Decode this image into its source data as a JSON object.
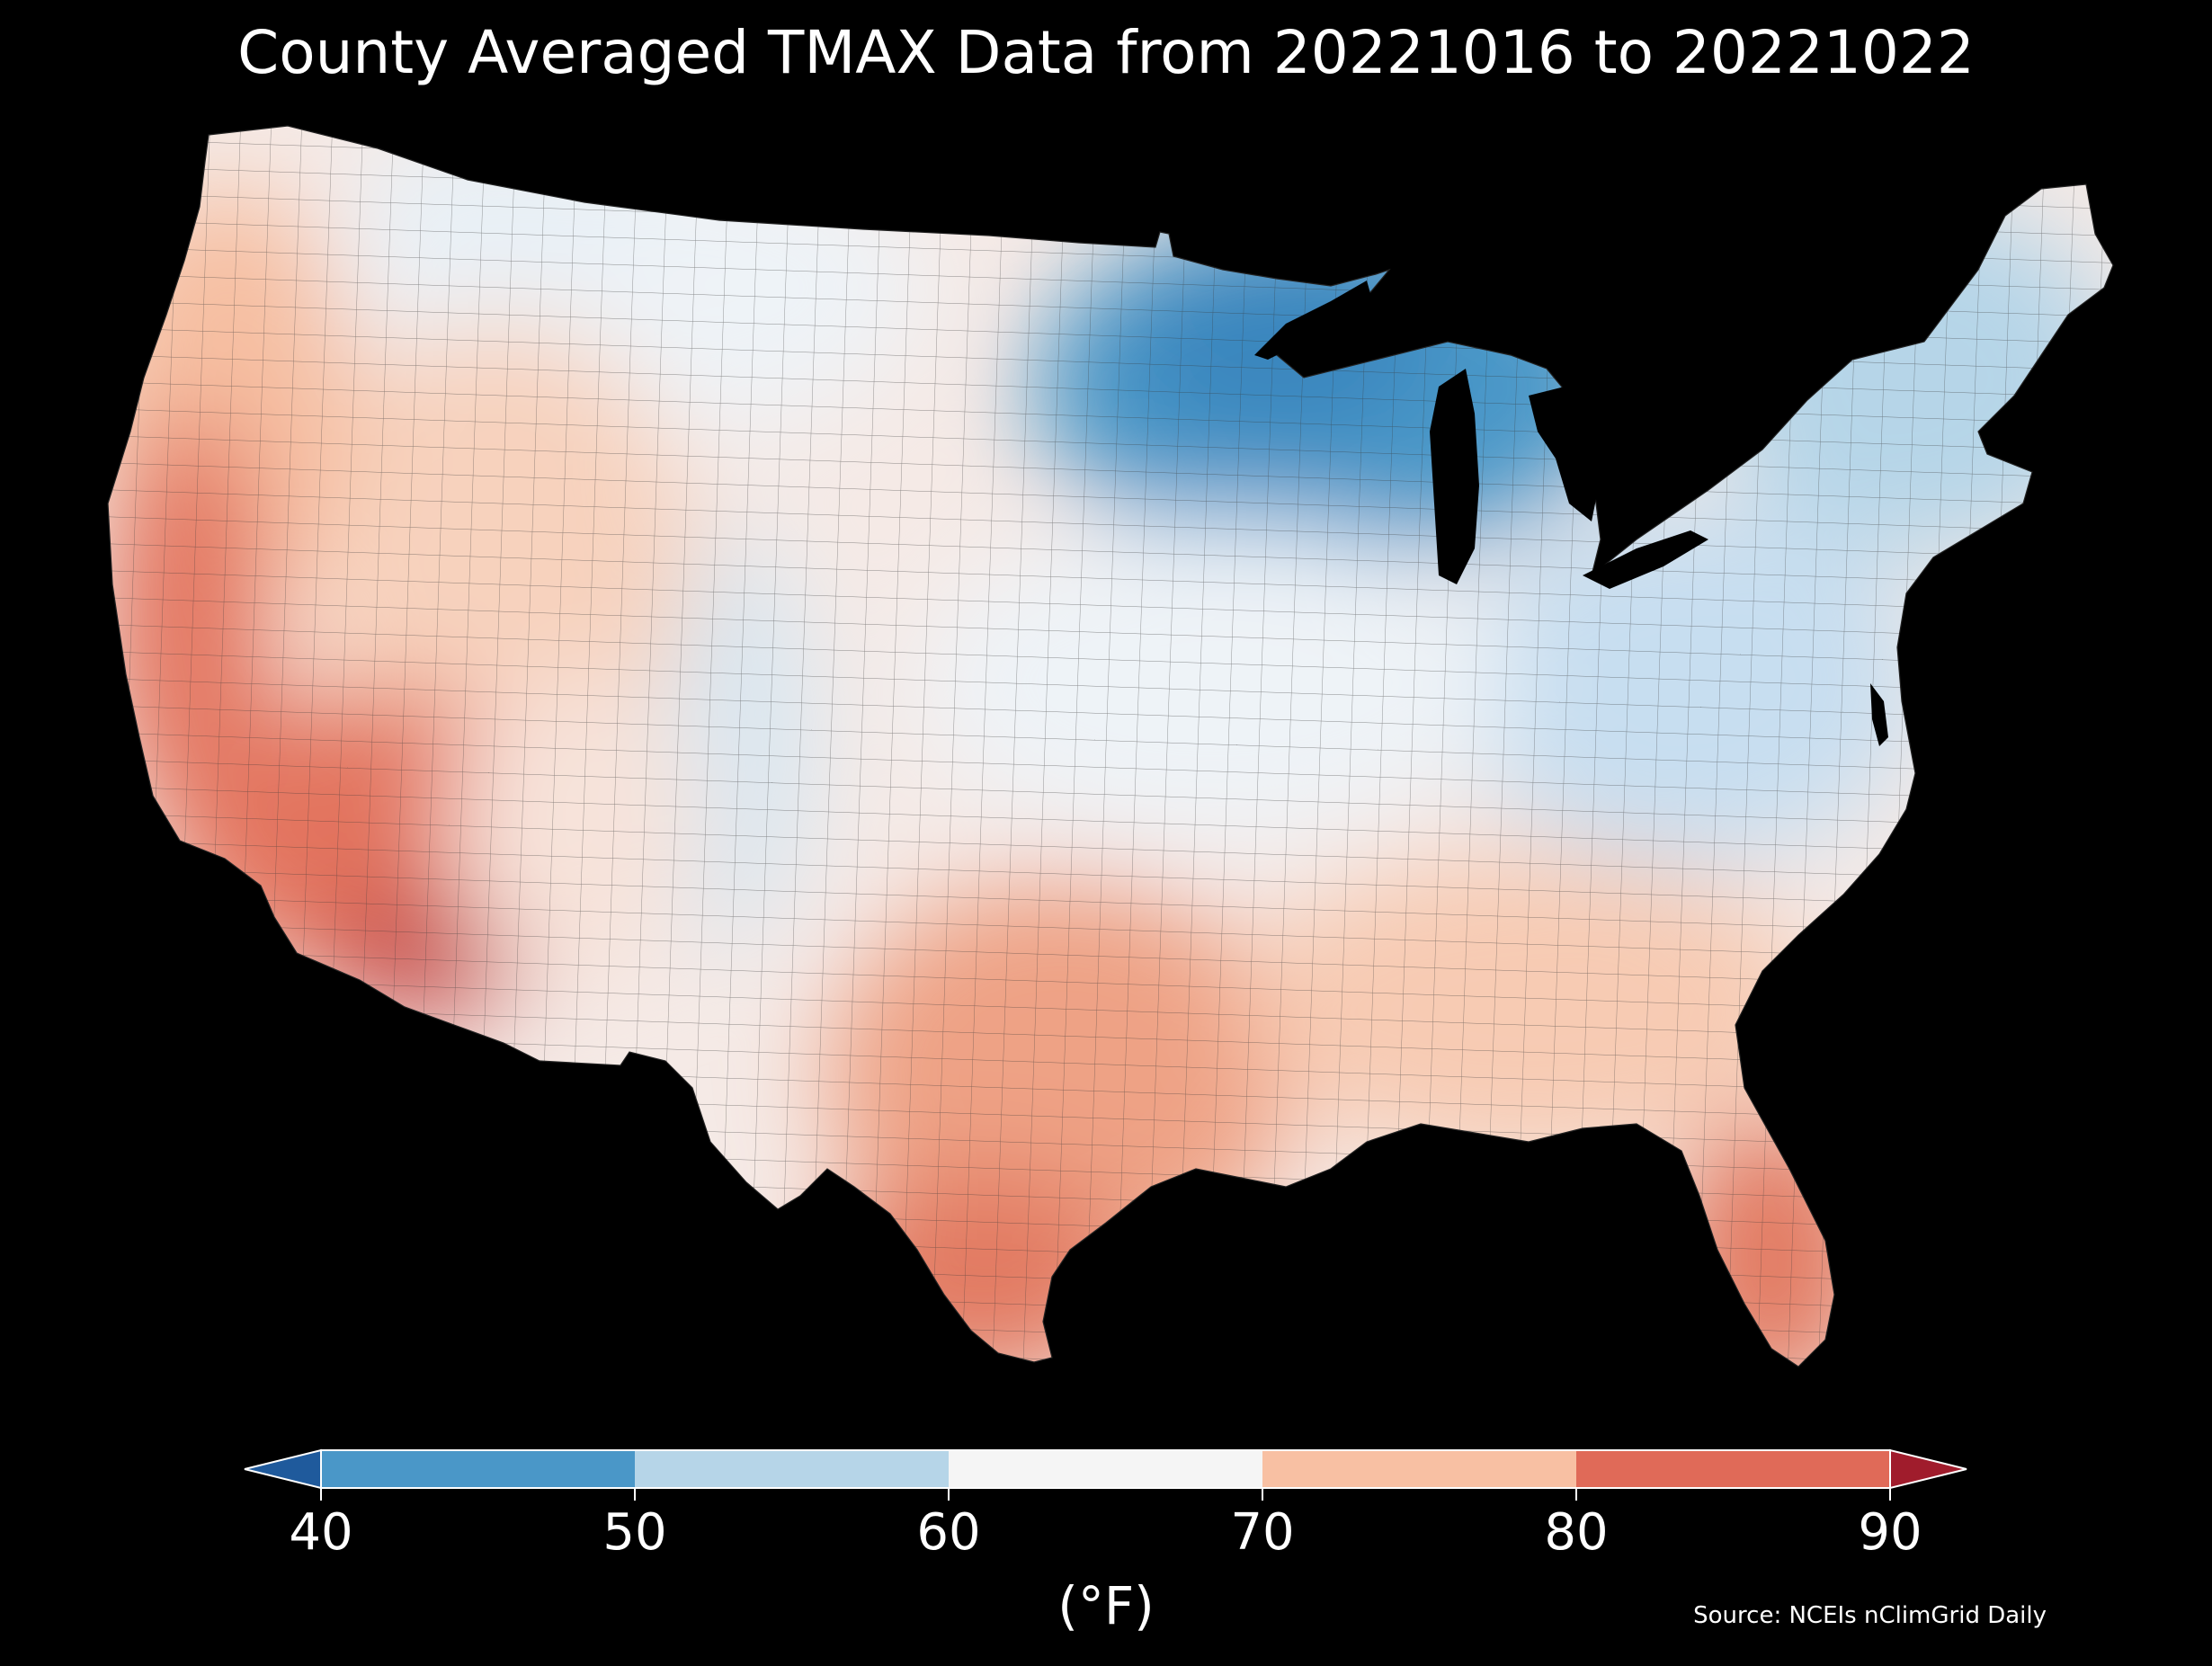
{
  "title": "County Averaged TMAX Data from 20221016 to 20221022",
  "colorbar": {
    "ticks": [
      "40",
      "50",
      "60",
      "70",
      "80",
      "90"
    ],
    "bins": [
      {
        "range": "<40",
        "color": "#1f5a9c"
      },
      {
        "range": "40-50",
        "color": "#4a97c8"
      },
      {
        "range": "50-60",
        "color": "#b6d5e8"
      },
      {
        "range": "60-70",
        "color": "#f5f5f5"
      },
      {
        "range": "70-80",
        "color": "#f8c0a3"
      },
      {
        "range": "80-90",
        "color": "#e06a58"
      },
      {
        "range": ">90",
        "color": "#a01c2c"
      }
    ],
    "extend": "both",
    "units": "(°F)"
  },
  "source": "Source: NCEIs nClimGrid Daily",
  "map": {
    "region": "Contiguous United States",
    "resolution": "county",
    "variable": "TMAX",
    "regions": [
      {
        "name": "northern-plains-rockies",
        "range": "60-70"
      },
      {
        "name": "upper-midwest-great-lakes",
        "range": "40-50"
      },
      {
        "name": "northeast",
        "range": "50-60"
      },
      {
        "name": "appalachians",
        "range": "50-60"
      },
      {
        "name": "central-rockies-colorado",
        "range": "50-60"
      },
      {
        "name": "pacific-northwest-coast",
        "range": "70-80"
      },
      {
        "name": "california-central-valley",
        "range": "80-90"
      },
      {
        "name": "desert-southwest",
        "range": "80-90"
      },
      {
        "name": "arizona-lower-colorado",
        "range": ">90"
      },
      {
        "name": "texas-central",
        "range": "70-80"
      },
      {
        "name": "south-texas",
        "range": "80-90"
      },
      {
        "name": "florida",
        "range": "80-90"
      },
      {
        "name": "southeast",
        "range": "70-80"
      }
    ]
  }
}
